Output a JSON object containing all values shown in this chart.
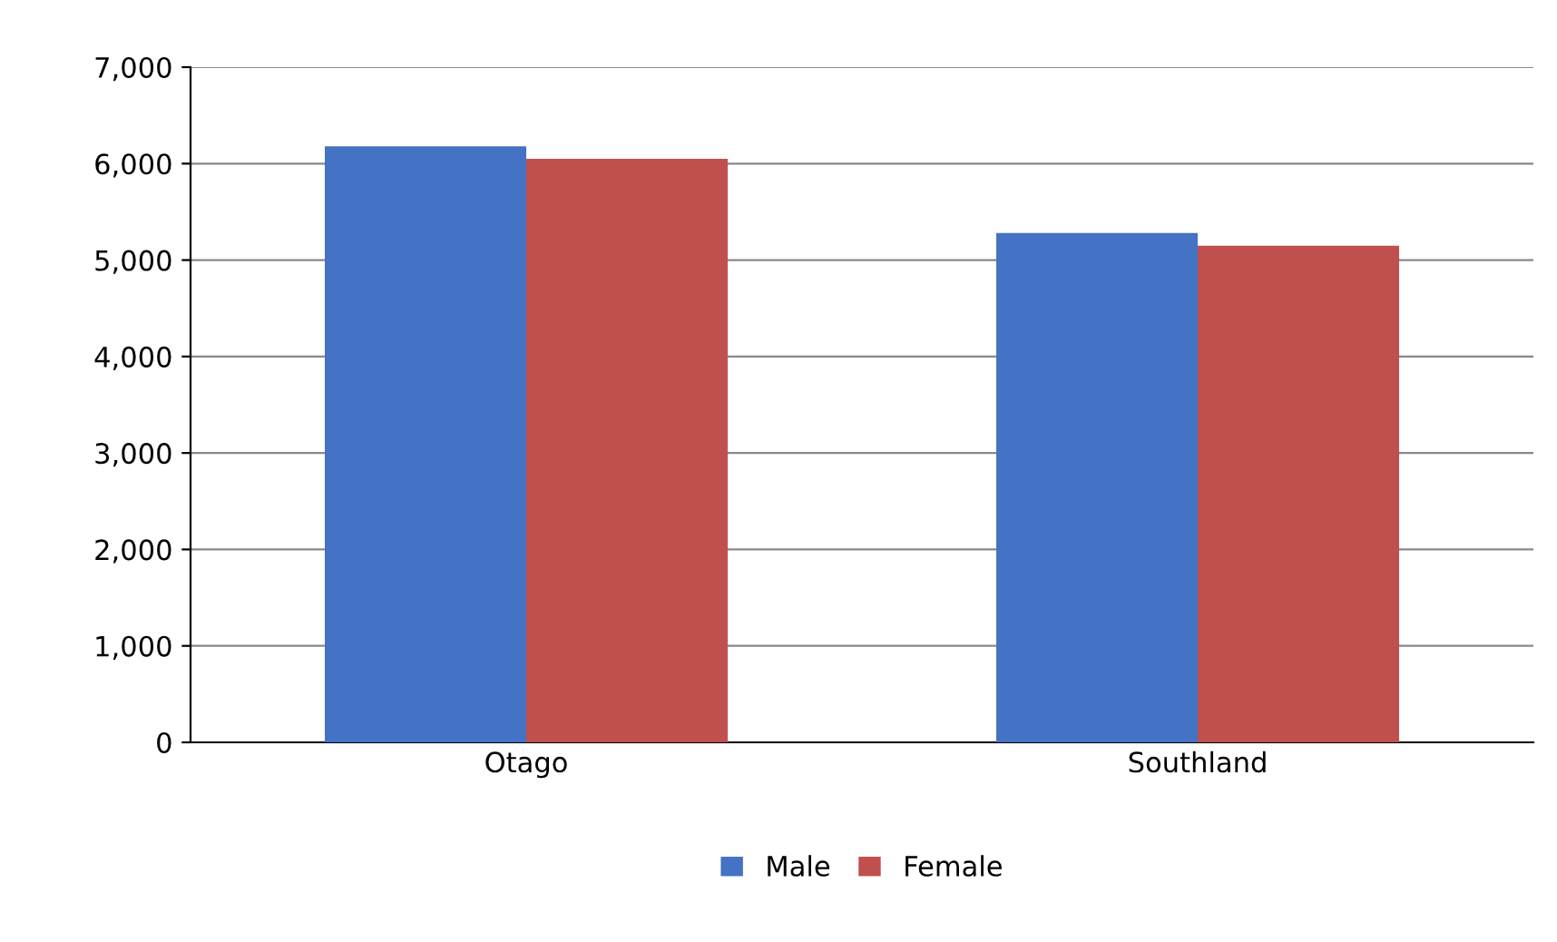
{
  "chart_data": {
    "type": "bar",
    "categories": [
      "Otago",
      "Southland"
    ],
    "series": [
      {
        "name": "Male",
        "color": "#4472c4",
        "values": [
          6180,
          5280
        ]
      },
      {
        "name": "Female",
        "color": "#c0504d",
        "values": [
          6050,
          5150
        ]
      }
    ],
    "ylim": [
      0,
      7000
    ],
    "yticks": [
      {
        "value": 0,
        "label": "0"
      },
      {
        "value": 1000,
        "label": "1,000"
      },
      {
        "value": 2000,
        "label": "2,000"
      },
      {
        "value": 3000,
        "label": "3,000"
      },
      {
        "value": 4000,
        "label": "4,000"
      },
      {
        "value": 5000,
        "label": "5,000"
      },
      {
        "value": 6000,
        "label": "6,000"
      },
      {
        "value": 7000,
        "label": "7,000"
      }
    ],
    "grid": "y",
    "legend": "bottom"
  }
}
